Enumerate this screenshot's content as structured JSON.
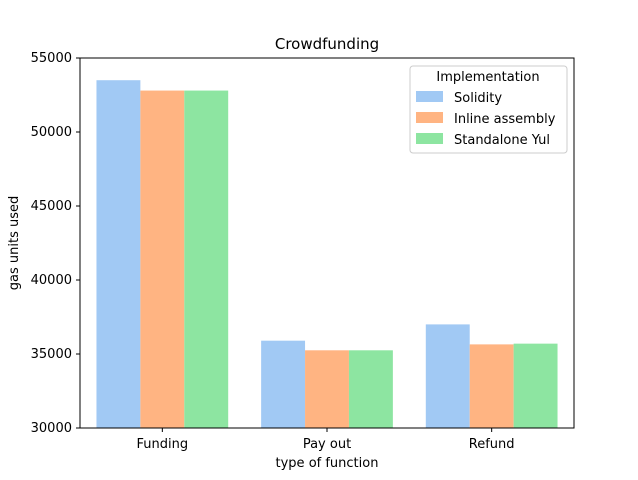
{
  "chart_data": {
    "type": "bar",
    "title": "Crowdfunding",
    "xlabel": "type of function",
    "ylabel": "gas units used",
    "categories": [
      "Funding",
      "Pay out",
      "Refund"
    ],
    "ylim": [
      30000,
      55000
    ],
    "yticks": [
      30000,
      35000,
      40000,
      45000,
      50000,
      55000
    ],
    "grid": false,
    "legend": {
      "title": "Implementation",
      "position": "top-right"
    },
    "series": [
      {
        "name": "Solidity",
        "color": "#a1c9f4",
        "values": [
          53500,
          35900,
          37000
        ]
      },
      {
        "name": "Inline assembly",
        "color": "#ffb482",
        "values": [
          52800,
          35250,
          35650
        ]
      },
      {
        "name": "Standalone Yul",
        "color": "#8de5a1",
        "values": [
          52800,
          35250,
          35700
        ]
      }
    ]
  }
}
